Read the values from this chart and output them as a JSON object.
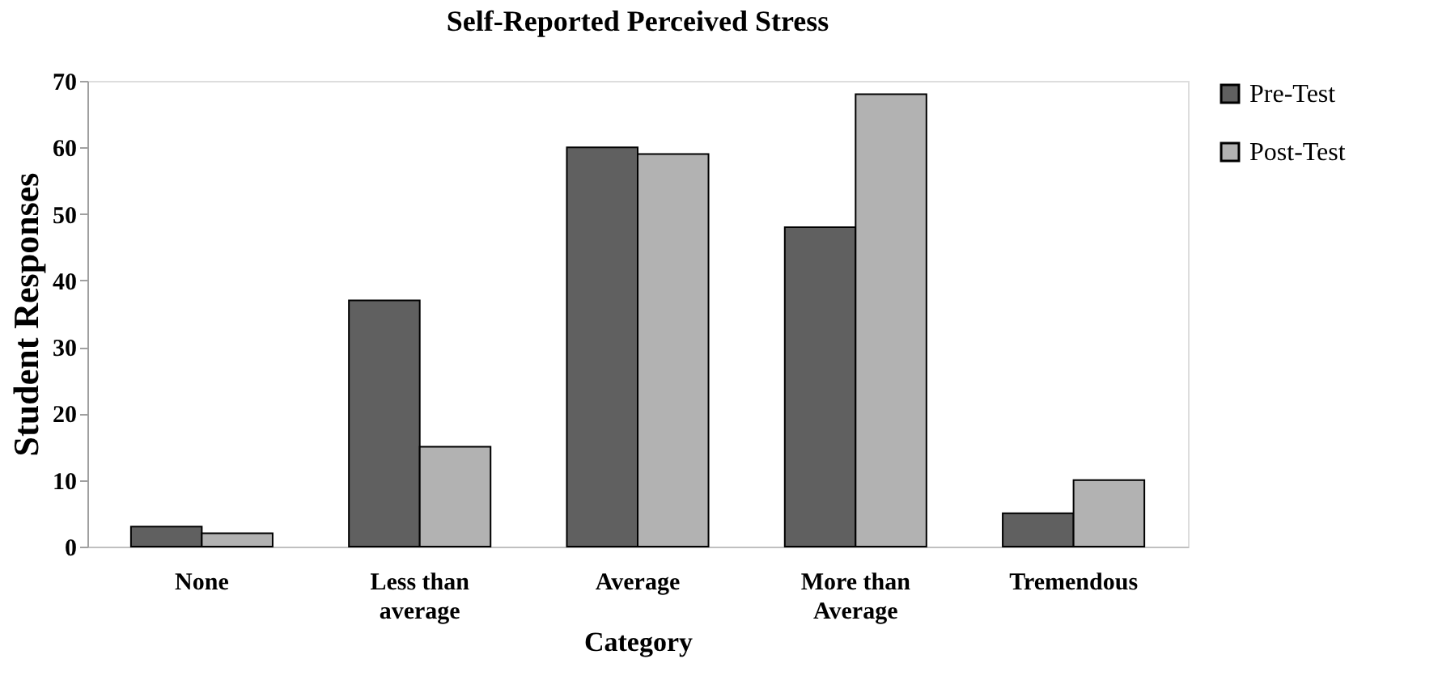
{
  "chart_data": {
    "type": "bar",
    "title": "Self-Reported Perceived Stress",
    "xlabel": "Category",
    "ylabel": "Student Responses",
    "categories": [
      "None",
      "Less than average",
      "Average",
      "More than Average",
      "Tremendous"
    ],
    "series": [
      {
        "name": "Pre-Test",
        "color": "#606060",
        "values": [
          3,
          37,
          60,
          48,
          5
        ]
      },
      {
        "name": "Post-Test",
        "color": "#b2b2b2",
        "values": [
          2,
          15,
          59,
          68,
          10
        ]
      }
    ],
    "ylim": [
      0,
      70
    ],
    "yticks": [
      0,
      10,
      20,
      30,
      40,
      50,
      60,
      70
    ],
    "grid": false,
    "legend": "right"
  }
}
